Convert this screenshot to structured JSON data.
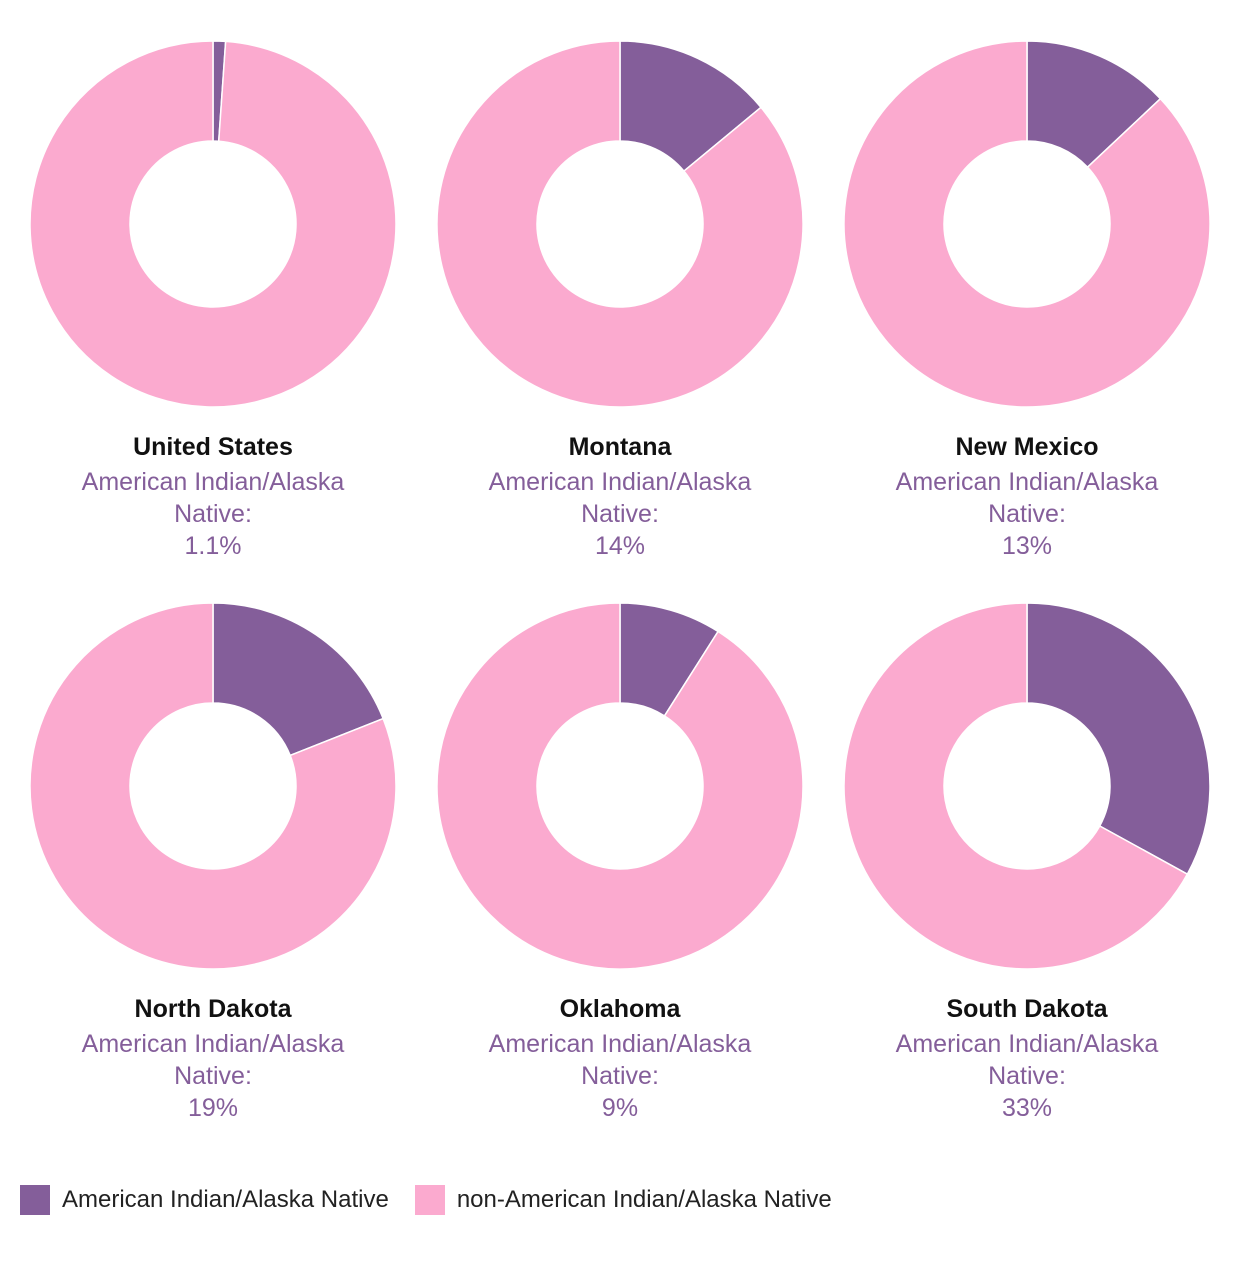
{
  "colors": {
    "native": "#845e9a",
    "non_native": "#fbaacf"
  },
  "chart_data": [
    {
      "type": "pie",
      "title": "United States",
      "caption_line1": "American Indian/Alaska",
      "caption_line2": "Native:",
      "value_label": "1.1%",
      "slices": [
        {
          "label": "American Indian/Alaska Native",
          "value": 1.1
        },
        {
          "label": "non-American Indian/Alaska Native",
          "value": 98.9
        }
      ]
    },
    {
      "type": "pie",
      "title": "Montana",
      "caption_line1": "American Indian/Alaska",
      "caption_line2": "Native:",
      "value_label": "14%",
      "slices": [
        {
          "label": "American Indian/Alaska Native",
          "value": 14
        },
        {
          "label": "non-American Indian/Alaska Native",
          "value": 86
        }
      ]
    },
    {
      "type": "pie",
      "title": "New Mexico",
      "caption_line1": "American Indian/Alaska",
      "caption_line2": "Native:",
      "value_label": "13%",
      "slices": [
        {
          "label": "American Indian/Alaska Native",
          "value": 13
        },
        {
          "label": "non-American Indian/Alaska Native",
          "value": 87
        }
      ]
    },
    {
      "type": "pie",
      "title": "North Dakota",
      "caption_line1": "American Indian/Alaska",
      "caption_line2": "Native:",
      "value_label": "19%",
      "slices": [
        {
          "label": "American Indian/Alaska Native",
          "value": 19
        },
        {
          "label": "non-American Indian/Alaska Native",
          "value": 81
        }
      ]
    },
    {
      "type": "pie",
      "title": "Oklahoma",
      "caption_line1": "American Indian/Alaska",
      "caption_line2": "Native:",
      "value_label": "9%",
      "slices": [
        {
          "label": "American Indian/Alaska Native",
          "value": 9
        },
        {
          "label": "non-American Indian/Alaska Native",
          "value": 91
        }
      ]
    },
    {
      "type": "pie",
      "title": "South Dakota",
      "caption_line1": "American Indian/Alaska",
      "caption_line2": "Native:",
      "value_label": "33%",
      "slices": [
        {
          "label": "American Indian/Alaska Native",
          "value": 33
        },
        {
          "label": "non-American Indian/Alaska Native",
          "value": 67
        }
      ]
    }
  ],
  "legend": {
    "items": [
      {
        "label": "American Indian/Alaska Native"
      },
      {
        "label": "non-American Indian/Alaska Native"
      }
    ]
  }
}
